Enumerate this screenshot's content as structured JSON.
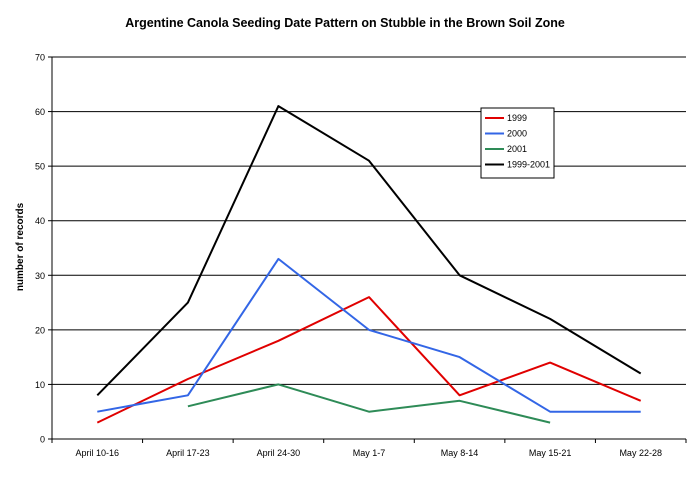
{
  "chart_data": {
    "type": "line",
    "title": "Argentine Canola Seeding Date Pattern on Stubble in the Brown Soil Zone",
    "xlabel": "",
    "ylabel": "number of records",
    "ylim": [
      0,
      70
    ],
    "yticks": [
      0,
      10,
      20,
      30,
      40,
      50,
      60,
      70
    ],
    "grid": "horizontal",
    "legend_position": "top-right",
    "categories": [
      "April 10-16",
      "April 17-23",
      "April 24-30",
      "May 1-7",
      "May 8-14",
      "May 15-21",
      "May 22-28"
    ],
    "series": [
      {
        "name": "1999",
        "color": "#e00000",
        "values": [
          3,
          11,
          18,
          26,
          8,
          14,
          7
        ]
      },
      {
        "name": "2000",
        "color": "#3366e6",
        "values": [
          5,
          8,
          33,
          20,
          15,
          5,
          5
        ]
      },
      {
        "name": "2001",
        "color": "#2e8b57",
        "values": [
          null,
          6,
          10,
          5,
          7,
          3,
          null
        ]
      },
      {
        "name": "1999-2001",
        "color": "#000000",
        "values": [
          8,
          25,
          61,
          51,
          30,
          22,
          12
        ]
      }
    ]
  }
}
